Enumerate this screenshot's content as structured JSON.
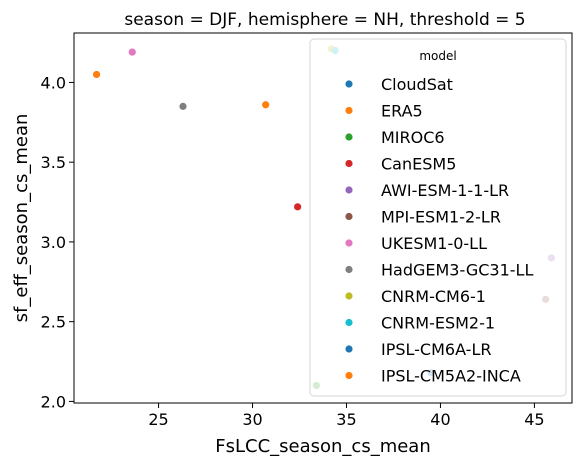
{
  "chart_data": {
    "type": "scatter",
    "title": "season = DJF, hemisphere = NH, threshold = 5",
    "xlabel": "FsLCC_season_cs_mean",
    "ylabel": "sf_eff_season_cs_mean",
    "xlim": [
      20.5,
      47.0
    ],
    "ylim": [
      1.99,
      4.31
    ],
    "x_ticks": [
      {
        "value": 25,
        "label": "25"
      },
      {
        "value": 30,
        "label": "30"
      },
      {
        "value": 35,
        "label": "35"
      },
      {
        "value": 40,
        "label": "40"
      },
      {
        "value": 45,
        "label": "45"
      }
    ],
    "y_ticks": [
      {
        "value": 2.0,
        "label": "2.0"
      },
      {
        "value": 2.5,
        "label": "2.5"
      },
      {
        "value": 3.0,
        "label": "3.0"
      },
      {
        "value": 3.5,
        "label": "3.5"
      },
      {
        "value": 4.0,
        "label": "4.0"
      }
    ],
    "grid": false,
    "legend": {
      "title": "model",
      "placement": "upper-right"
    },
    "series": [
      {
        "name": "CloudSat",
        "color": "#1f77b4",
        "points": []
      },
      {
        "name": "ERA5",
        "color": "#ff7f0e",
        "points": [
          {
            "x": 30.7,
            "y": 3.86
          }
        ]
      },
      {
        "name": "MIROC6",
        "color": "#2ca02c",
        "points": [
          {
            "x": 33.4,
            "y": 2.1
          }
        ]
      },
      {
        "name": "CanESM5",
        "color": "#d62728",
        "points": [
          {
            "x": 32.4,
            "y": 3.22
          }
        ]
      },
      {
        "name": "AWI-ESM-1-1-LR",
        "color": "#9467bd",
        "points": [
          {
            "x": 45.9,
            "y": 2.9
          }
        ]
      },
      {
        "name": "MPI-ESM1-2-LR",
        "color": "#8c564b",
        "points": [
          {
            "x": 45.6,
            "y": 2.64
          }
        ]
      },
      {
        "name": "UKESM1-0-LL",
        "color": "#e377c2",
        "points": [
          {
            "x": 23.6,
            "y": 4.19
          }
        ]
      },
      {
        "name": "HadGEM3-GC31-LL",
        "color": "#7f7f7f",
        "points": [
          {
            "x": 26.3,
            "y": 3.85
          }
        ]
      },
      {
        "name": "CNRM-CM6-1",
        "color": "#bcbd22",
        "points": [
          {
            "x": 34.2,
            "y": 4.21
          }
        ]
      },
      {
        "name": "CNRM-ESM2-1",
        "color": "#17becf",
        "points": [
          {
            "x": 34.4,
            "y": 4.2
          }
        ]
      },
      {
        "name": "IPSL-CM6A-LR",
        "color": "#1f77b4",
        "points": [
          {
            "x": 39.5,
            "y": 2.18
          }
        ]
      },
      {
        "name": "IPSL-CM5A2-INCA",
        "color": "#ff7f0e",
        "points": [
          {
            "x": 21.7,
            "y": 4.05
          }
        ]
      }
    ]
  }
}
